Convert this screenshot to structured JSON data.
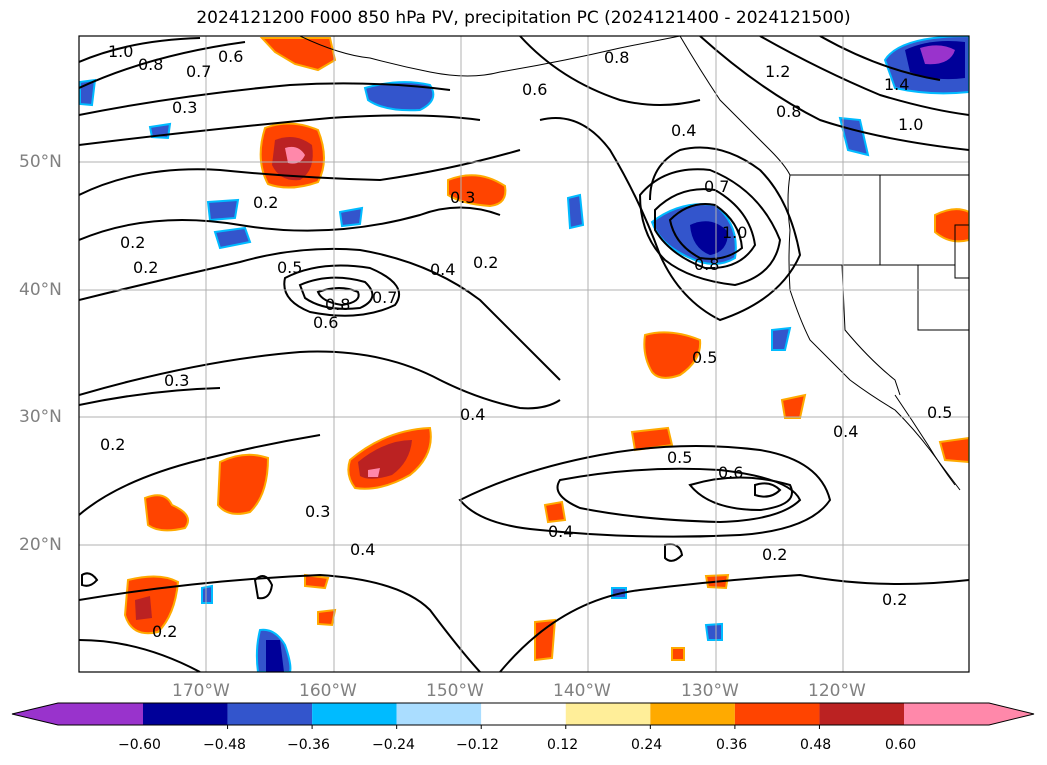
{
  "title": "2024121200 F000 850 hPa PV, precipitation PC (2024121400 - 2024121500)",
  "lat_labels": [
    "50°N",
    "40°N",
    "30°N",
    "20°N"
  ],
  "lon_labels": [
    "170°W",
    "160°W",
    "150°W",
    "140°W",
    "130°W",
    "120°W"
  ],
  "contour_labels": [
    "1.0",
    "0.8",
    "0.7",
    "0.6",
    "0.3",
    "0.2",
    "0.2",
    "0.2",
    "0.5",
    "0.8",
    "0.7",
    "0.6",
    "0.4",
    "0.2",
    "0.3",
    "0.3",
    "0.2",
    "0.3",
    "0.4",
    "0.2",
    "0.8",
    "0.6",
    "0.4",
    "0.7",
    "1.0",
    "0.8",
    "0.5",
    "0.5",
    "0.6",
    "0.4",
    "0.2",
    "0.2",
    "0.4",
    "0.4",
    "0.5",
    "1.2",
    "0.8",
    "1.0",
    "1.4"
  ],
  "colorbar": {
    "colors": [
      "#9933cc",
      "#000099",
      "#3355cc",
      "#00bbff",
      "#aaddff",
      "#ffffff",
      "#ffee99",
      "#ffaa00",
      "#ff4400",
      "#bb2222",
      "#ff88aa"
    ],
    "tick_labels": [
      "−0.60",
      "−0.48",
      "−0.36",
      "−0.24",
      "−0.12",
      "0.12",
      "0.24",
      "0.36",
      "0.48",
      "0.60"
    ]
  }
}
